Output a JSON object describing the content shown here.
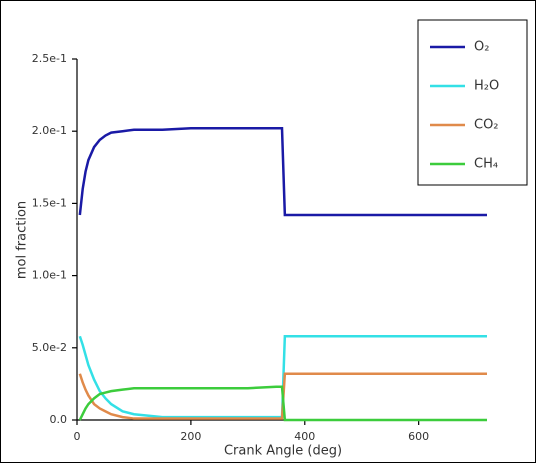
{
  "chart_data": {
    "type": "line",
    "x_label": "Crank Angle (deg)",
    "y_label": "mol fraction",
    "x": [
      5,
      10,
      15,
      20,
      30,
      40,
      50,
      60,
      80,
      100,
      150,
      200,
      250,
      300,
      350,
      360,
      365,
      370,
      400,
      500,
      600,
      720
    ],
    "series": [
      {
        "name": "O₂",
        "color": "#1a1aa6",
        "values": [
          0.142,
          0.16,
          0.172,
          0.18,
          0.189,
          0.194,
          0.197,
          0.199,
          0.2,
          0.201,
          0.201,
          0.202,
          0.202,
          0.202,
          0.202,
          0.202,
          0.142,
          0.142,
          0.142,
          0.142,
          0.142,
          0.142
        ]
      },
      {
        "name": "H₂O",
        "color": "#33e0e6",
        "values": [
          0.058,
          0.052,
          0.045,
          0.038,
          0.028,
          0.02,
          0.015,
          0.011,
          0.006,
          0.004,
          0.002,
          0.002,
          0.002,
          0.002,
          0.002,
          0.002,
          0.058,
          0.058,
          0.058,
          0.058,
          0.058,
          0.058
        ]
      },
      {
        "name": "CO₂",
        "color": "#e08a4a",
        "values": [
          0.032,
          0.026,
          0.021,
          0.017,
          0.011,
          0.008,
          0.006,
          0.004,
          0.002,
          0.001,
          0.001,
          0.001,
          0.001,
          0.001,
          0.001,
          0.001,
          0.032,
          0.032,
          0.032,
          0.032,
          0.032,
          0.032
        ]
      },
      {
        "name": "CH₄",
        "color": "#3ccc3c",
        "values": [
          0,
          0.004,
          0.008,
          0.011,
          0.015,
          0.018,
          0.019,
          0.02,
          0.021,
          0.022,
          0.022,
          0.022,
          0.022,
          0.022,
          0.023,
          0.023,
          0,
          0,
          0,
          0,
          0,
          0
        ]
      }
    ],
    "xlim": [
      0,
      720
    ],
    "ylim": [
      0,
      0.25
    ],
    "xticks": [
      0,
      200,
      400,
      600
    ],
    "yticks": [
      {
        "value": 0,
        "label": "0.0"
      },
      {
        "value": 0.05,
        "label": "5.0e-2"
      },
      {
        "value": 0.1,
        "label": "1.0e-1"
      },
      {
        "value": 0.15,
        "label": "1.5e-1"
      },
      {
        "value": 0.2,
        "label": "2.0e-1"
      },
      {
        "value": 0.25,
        "label": "2.5e-1"
      }
    ],
    "grid": false,
    "legend": "upper right"
  }
}
